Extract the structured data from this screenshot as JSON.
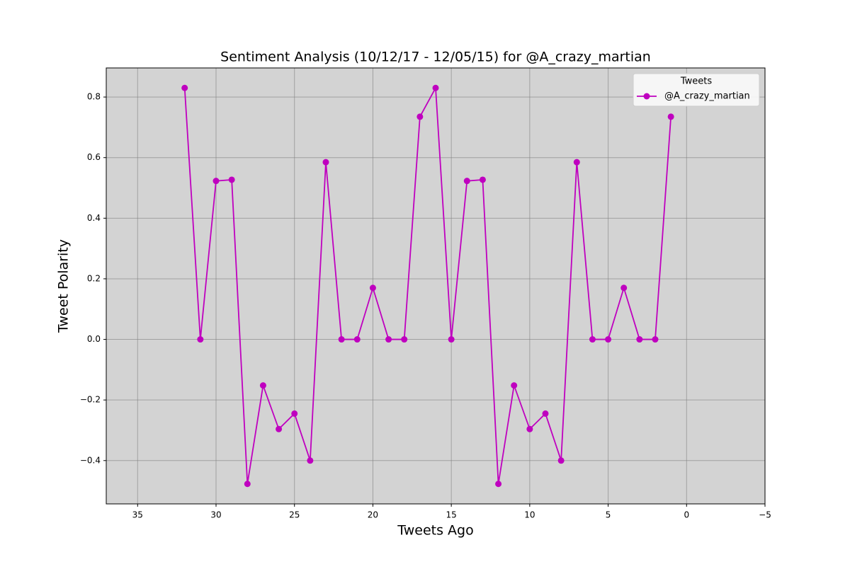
{
  "chart_data": {
    "type": "line",
    "title": "Sentiment Analysis (10/12/17 - 12/05/15) for @A_crazy_martian",
    "x_label": "Tweets Ago",
    "y_label": "Tweet Polarity",
    "x": [
      32,
      31,
      30,
      29,
      28,
      27,
      26,
      25,
      24,
      23,
      22,
      21,
      20,
      19,
      18,
      17,
      16,
      15,
      14,
      13,
      12,
      11,
      10,
      9,
      8,
      7,
      6,
      5,
      4,
      3,
      2,
      1
    ],
    "series": [
      {
        "name": "@A_crazy_martian",
        "color": "#bf00bf",
        "values": [
          0.83,
          0,
          0.523,
          0.527,
          -0.477,
          -0.152,
          -0.296,
          -0.245,
          -0.4,
          0.585,
          0,
          0,
          0.17,
          0,
          0,
          0.735,
          0.83,
          0,
          0.523,
          0.527,
          -0.477,
          -0.152,
          -0.296,
          -0.245,
          -0.4,
          0.585,
          0,
          0,
          0.17,
          0,
          0,
          0.735
        ]
      }
    ],
    "xlim": [
      37,
      -5
    ],
    "xticks": [
      35,
      30,
      25,
      20,
      15,
      10,
      5,
      0,
      {
        "value": -5,
        "label": "−5"
      }
    ],
    "ylim": [
      -0.543,
      0.896
    ],
    "yticks": [
      {
        "value": -0.4,
        "label": "−0.4"
      },
      {
        "value": -0.2,
        "label": "−0.2"
      },
      {
        "value": 0,
        "label": "0.0"
      },
      0.2,
      0.4,
      0.6,
      0.8
    ],
    "grid": true,
    "legend_title": "Tweets",
    "legend_position": "upper-right",
    "background": "#d3d3d3"
  }
}
